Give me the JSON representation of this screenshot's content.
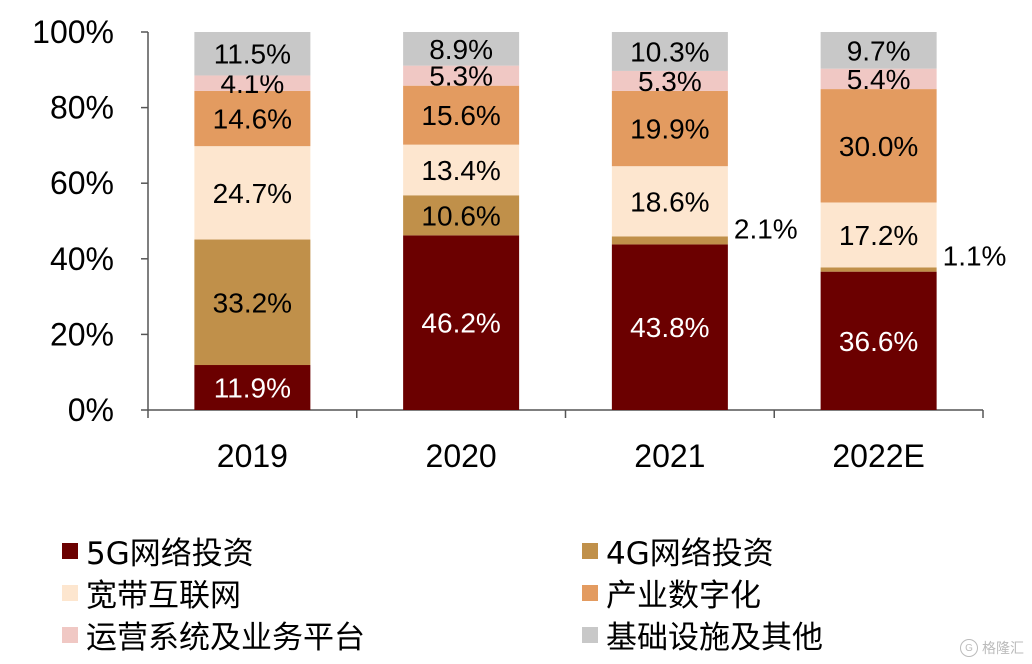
{
  "chart_data": {
    "type": "bar",
    "stacked": true,
    "categories": [
      "2019",
      "2020",
      "2021",
      "2022E"
    ],
    "ylim": [
      0,
      100
    ],
    "yticks": [
      "0%",
      "20%",
      "40%",
      "60%",
      "80%",
      "100%"
    ],
    "grid": false,
    "legend_position": "bottom",
    "series": [
      {
        "name": "5G网络投资",
        "color": "#6b0000",
        "values": [
          11.9,
          46.2,
          43.8,
          36.6
        ],
        "labels": [
          "11.9%",
          "46.2%",
          "43.8%",
          "36.6%"
        ]
      },
      {
        "name": "4G网络投资",
        "color": "#c0904a",
        "values": [
          33.2,
          10.6,
          2.1,
          1.1
        ],
        "labels": [
          "33.2%",
          "10.6%",
          "2.1%",
          "1.1%"
        ]
      },
      {
        "name": "宽带互联网",
        "color": "#fde6cf",
        "values": [
          24.7,
          13.4,
          18.6,
          17.2
        ],
        "labels": [
          "24.7%",
          "13.4%",
          "18.6%",
          "17.2%"
        ]
      },
      {
        "name": "产业数字化",
        "color": "#e39b60",
        "values": [
          14.6,
          15.6,
          19.9,
          30.0
        ],
        "labels": [
          "14.6%",
          "15.6%",
          "19.9%",
          "30.0%"
        ]
      },
      {
        "name": "运营系统及业务平台",
        "color": "#f0c8c4",
        "values": [
          4.1,
          5.3,
          5.3,
          5.4
        ],
        "labels": [
          "4.1%",
          "5.3%",
          "5.3%",
          "5.4%"
        ]
      },
      {
        "name": "基础设施及其他",
        "color": "#c8c8c8",
        "values": [
          11.5,
          8.9,
          10.3,
          9.7
        ],
        "labels": [
          "11.5%",
          "8.9%",
          "10.3%",
          "9.7%"
        ]
      }
    ]
  },
  "watermark": {
    "icon": "G",
    "text": "格隆汇"
  }
}
